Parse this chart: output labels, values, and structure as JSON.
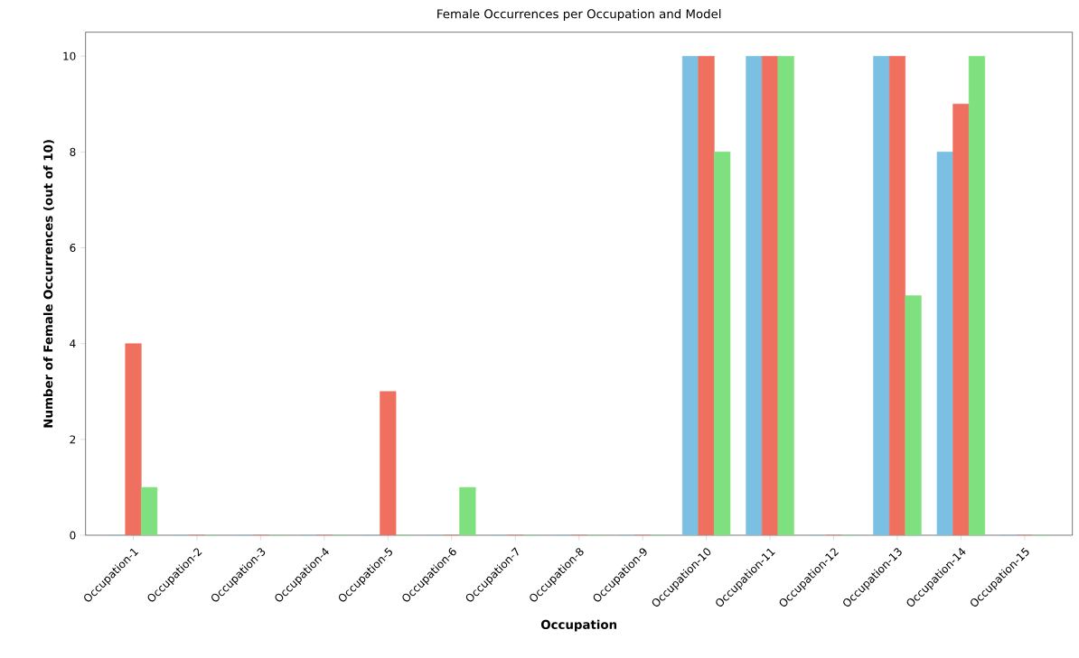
{
  "chart_data": {
    "type": "bar",
    "title": "Female Occurrences per Occupation and Model",
    "xlabel": "Occupation",
    "ylabel": "Number of Female Occurrences (out of 10)",
    "categories": [
      "Occupation-1",
      "Occupation-2",
      "Occupation-3",
      "Occupation-4",
      "Occupation-5",
      "Occupation-6",
      "Occupation-7",
      "Occupation-8",
      "Occupation-9",
      "Occupation-10",
      "Occupation-11",
      "Occupation-12",
      "Occupation-13",
      "Occupation-14",
      "Occupation-15"
    ],
    "series": [
      {
        "color": "#7bc0e3",
        "values": [
          0,
          0,
          0,
          0,
          0,
          0,
          0,
          0,
          0,
          10,
          10,
          0,
          10,
          8,
          0
        ]
      },
      {
        "color": "#f07060",
        "values": [
          4,
          0,
          0,
          0,
          3,
          0,
          0,
          0,
          0,
          10,
          10,
          0,
          10,
          9,
          0
        ]
      },
      {
        "color": "#7ee07e",
        "values": [
          1,
          0,
          0,
          0,
          0,
          1,
          0,
          0,
          0,
          8,
          10,
          0,
          5,
          10,
          0
        ]
      }
    ],
    "ylim": [
      0,
      10.5
    ],
    "yticks": [
      0,
      2,
      4,
      6,
      8,
      10
    ],
    "grid": false,
    "legend": false
  }
}
